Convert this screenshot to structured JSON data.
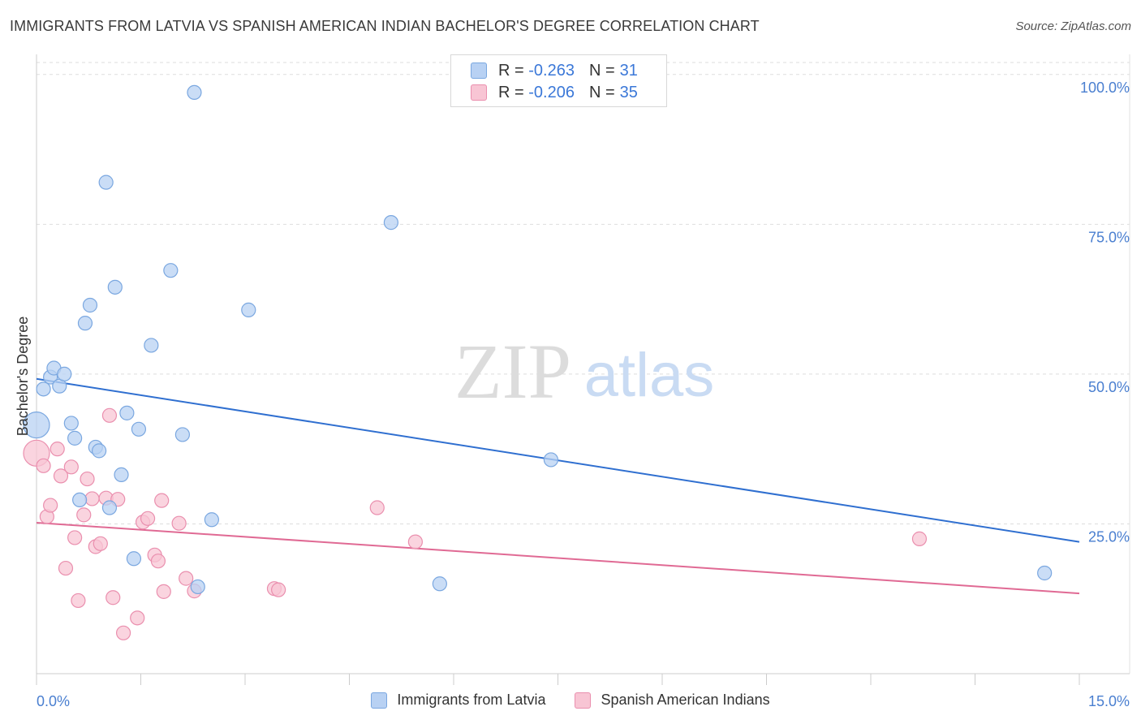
{
  "header": {
    "title": "IMMIGRANTS FROM LATVIA VS SPANISH AMERICAN INDIAN BACHELOR'S DEGREE CORRELATION CHART",
    "source": "Source: ZipAtlas.com"
  },
  "legend": {
    "rows": [
      {
        "r_label": "R =",
        "r_value": "-0.263",
        "n_label": "N =",
        "n_value": "31"
      },
      {
        "r_label": "R =",
        "r_value": "-0.206",
        "n_label": "N =",
        "n_value": "35"
      }
    ]
  },
  "watermark": {
    "part1": "ZIP",
    "part2": "atlas"
  },
  "colors": {
    "blue_fill": "#b8d1f3",
    "blue_stroke": "#7aa7e0",
    "blue_line": "#2f6fd0",
    "pink_fill": "#f8c5d4",
    "pink_stroke": "#ea8fae",
    "pink_line": "#e06a94",
    "tick_label": "#4a7fd0",
    "grid": "#dddddd"
  },
  "chart_data": {
    "type": "scatter",
    "title": "IMMIGRANTS FROM LATVIA VS SPANISH AMERICAN INDIAN BACHELOR'S DEGREE CORRELATION CHART",
    "xlabel": "",
    "ylabel": "Bachelor's Degree",
    "xlim": [
      0,
      15
    ],
    "ylim": [
      0,
      102
    ],
    "x_tick_labels": [
      "0.0%",
      "15.0%"
    ],
    "y_ticks": [
      25,
      50,
      75,
      100
    ],
    "y_tick_labels": [
      "25.0%",
      "50.0%",
      "75.0%",
      "100.0%"
    ],
    "grid": true,
    "legend_position": "top-center",
    "series": [
      {
        "name": "Immigrants from Latvia",
        "color": "#b8d1f3",
        "points": [
          {
            "x": 0.0,
            "y": 41.5,
            "big": true
          },
          {
            "x": 0.1,
            "y": 47.5
          },
          {
            "x": 0.2,
            "y": 49.5
          },
          {
            "x": 0.25,
            "y": 51
          },
          {
            "x": 0.33,
            "y": 48
          },
          {
            "x": 0.4,
            "y": 50
          },
          {
            "x": 0.5,
            "y": 41.8
          },
          {
            "x": 0.55,
            "y": 39.3
          },
          {
            "x": 0.62,
            "y": 29
          },
          {
            "x": 0.7,
            "y": 58.5
          },
          {
            "x": 0.77,
            "y": 61.5
          },
          {
            "x": 0.85,
            "y": 37.8
          },
          {
            "x": 0.9,
            "y": 37.2
          },
          {
            "x": 1.0,
            "y": 82
          },
          {
            "x": 1.05,
            "y": 27.7
          },
          {
            "x": 1.13,
            "y": 64.5
          },
          {
            "x": 1.22,
            "y": 33.2
          },
          {
            "x": 1.3,
            "y": 43.5
          },
          {
            "x": 1.4,
            "y": 19.2
          },
          {
            "x": 1.47,
            "y": 40.8
          },
          {
            "x": 1.65,
            "y": 54.8
          },
          {
            "x": 1.93,
            "y": 67.3
          },
          {
            "x": 2.1,
            "y": 39.9
          },
          {
            "x": 2.27,
            "y": 97
          },
          {
            "x": 2.32,
            "y": 14.5
          },
          {
            "x": 2.52,
            "y": 25.7
          },
          {
            "x": 3.05,
            "y": 60.7
          },
          {
            "x": 5.1,
            "y": 75.3
          },
          {
            "x": 5.8,
            "y": 15
          },
          {
            "x": 7.4,
            "y": 35.7
          },
          {
            "x": 14.5,
            "y": 16.8
          }
        ],
        "trend": {
          "x": [
            0,
            15
          ],
          "y": [
            49.2,
            22
          ]
        }
      },
      {
        "name": "Spanish American Indians",
        "color": "#f8c5d4",
        "points": [
          {
            "x": 0.0,
            "y": 36.8,
            "big": true
          },
          {
            "x": 0.1,
            "y": 34.7
          },
          {
            "x": 0.15,
            "y": 26.2
          },
          {
            "x": 0.2,
            "y": 28.1
          },
          {
            "x": 0.3,
            "y": 37.5
          },
          {
            "x": 0.35,
            "y": 33
          },
          {
            "x": 0.42,
            "y": 17.6
          },
          {
            "x": 0.5,
            "y": 34.5
          },
          {
            "x": 0.55,
            "y": 22.7
          },
          {
            "x": 0.6,
            "y": 12.2
          },
          {
            "x": 0.68,
            "y": 26.5
          },
          {
            "x": 0.73,
            "y": 32.5
          },
          {
            "x": 0.8,
            "y": 29.2
          },
          {
            "x": 0.85,
            "y": 21.2
          },
          {
            "x": 0.92,
            "y": 21.7
          },
          {
            "x": 1.0,
            "y": 29.3
          },
          {
            "x": 1.05,
            "y": 43.1
          },
          {
            "x": 1.1,
            "y": 12.7
          },
          {
            "x": 1.17,
            "y": 29.1
          },
          {
            "x": 1.25,
            "y": 6.8
          },
          {
            "x": 1.45,
            "y": 9.3
          },
          {
            "x": 1.53,
            "y": 25.3
          },
          {
            "x": 1.6,
            "y": 25.9
          },
          {
            "x": 1.7,
            "y": 19.8
          },
          {
            "x": 1.75,
            "y": 18.8
          },
          {
            "x": 1.8,
            "y": 28.9
          },
          {
            "x": 1.83,
            "y": 13.7
          },
          {
            "x": 2.05,
            "y": 25.1
          },
          {
            "x": 2.15,
            "y": 15.9
          },
          {
            "x": 2.27,
            "y": 13.8
          },
          {
            "x": 3.42,
            "y": 14.2
          },
          {
            "x": 3.48,
            "y": 14
          },
          {
            "x": 4.9,
            "y": 27.7
          },
          {
            "x": 5.45,
            "y": 22
          },
          {
            "x": 12.7,
            "y": 22.5
          }
        ],
        "trend": {
          "x": [
            0,
            15
          ],
          "y": [
            25.2,
            13.4
          ]
        }
      }
    ]
  }
}
